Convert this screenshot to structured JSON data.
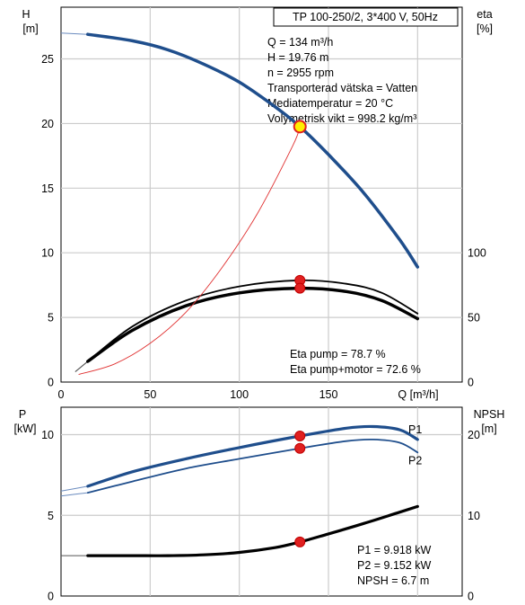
{
  "chart_data": [
    {
      "type": "line",
      "title": "TP 100-250/2, 3*400 V, 50Hz",
      "xlabel": "Q [m³/h]",
      "xlim": [
        0,
        225
      ],
      "xticks": [
        0,
        50,
        100,
        150
      ],
      "left_axis": {
        "label_top": "H",
        "label_unit": "[m]",
        "ylim": [
          0,
          29
        ],
        "ticks": [
          0,
          5,
          10,
          15,
          20,
          25
        ]
      },
      "right_axis": {
        "label_top": "eta",
        "label_unit": "[%]",
        "ylim": [
          0,
          290
        ],
        "ticks": [
          0,
          50,
          100
        ]
      },
      "grid": true,
      "info_lines": [
        "Q = 134 m³/h",
        "H = 19.76 m",
        "n = 2955 rpm",
        "Transporterad vätska = Vatten",
        "Mediatemperatur = 20 °C",
        "Volymetrisk vikt = 998.2 kg/m³"
      ],
      "eta_labels": [
        "Eta pump = 78.7 %",
        "Eta pump+motor = 72.6 %"
      ],
      "series": [
        {
          "id": "H",
          "axis": "left",
          "color": "#1f4e8c",
          "x_extension": [
            0,
            15
          ],
          "y_extension": [
            27.0,
            26.9
          ],
          "x": [
            15,
            40,
            60,
            80,
            100,
            120,
            134,
            150,
            170,
            190,
            200
          ],
          "y": [
            26.9,
            26.4,
            25.7,
            24.6,
            23.2,
            21.3,
            19.76,
            17.6,
            14.6,
            11.0,
            8.9
          ]
        },
        {
          "id": "eta-pump-upper",
          "axis": "right",
          "color": "#000000",
          "x_extension": [
            8,
            15
          ],
          "y_extension": [
            8,
            16
          ],
          "x": [
            15,
            40,
            70,
            100,
            134,
            160,
            180,
            200
          ],
          "y": [
            16,
            43,
            63,
            74,
            78.7,
            76,
            69,
            53
          ]
        },
        {
          "id": "eta-pump",
          "axis": "right",
          "color": "#000000",
          "x_extension": [
            8,
            15
          ],
          "y_extension": [
            8,
            16
          ],
          "x": [
            15,
            40,
            70,
            100,
            134,
            160,
            180,
            200
          ],
          "y": [
            16,
            40,
            59,
            69,
            72.6,
            70,
            63,
            49
          ]
        },
        {
          "id": "system-curve",
          "axis": "left",
          "color": "#e03030",
          "x": [
            10,
            30,
            50,
            70,
            90,
            110,
            130,
            134
          ],
          "y": [
            0.6,
            1.4,
            3.0,
            5.4,
            8.8,
            13.0,
            18.3,
            19.76
          ]
        }
      ],
      "operating_points": [
        {
          "x": 134,
          "y": 19.76,
          "axis": "left",
          "style": "yellow"
        },
        {
          "x": 134,
          "y": 78.7,
          "axis": "right",
          "style": "red"
        },
        {
          "x": 134,
          "y": 72.6,
          "axis": "right",
          "style": "red"
        }
      ]
    },
    {
      "type": "line",
      "xlim": [
        0,
        225
      ],
      "left_axis": {
        "label_top": "P",
        "label_unit": "[kW]",
        "ylim": [
          0,
          11.7
        ],
        "ticks": [
          0,
          5,
          10
        ]
      },
      "right_axis": {
        "label_top": "NPSH",
        "label_unit": "[m]",
        "ylim": [
          0,
          23.4
        ],
        "ticks": [
          0,
          10,
          20
        ]
      },
      "grid": true,
      "info_lines": [
        "P1 = 9.918 kW",
        "P2 = 9.152 kW",
        "NPSH = 6.7 m"
      ],
      "series": [
        {
          "id": "P1",
          "name": "P1",
          "axis": "left",
          "color": "#1f4e8c",
          "x_extension": [
            0,
            15
          ],
          "y_extension": [
            6.5,
            6.8
          ],
          "x": [
            15,
            40,
            70,
            100,
            134,
            160,
            175,
            190,
            200
          ],
          "y": [
            6.8,
            7.7,
            8.5,
            9.2,
            9.918,
            10.4,
            10.5,
            10.3,
            9.7
          ]
        },
        {
          "id": "P2",
          "name": "P2",
          "axis": "left",
          "color": "#1f4e8c",
          "x_extension": [
            0,
            15
          ],
          "y_extension": [
            6.2,
            6.4
          ],
          "x": [
            15,
            40,
            70,
            100,
            134,
            160,
            175,
            190,
            200
          ],
          "y": [
            6.4,
            7.1,
            7.9,
            8.5,
            9.152,
            9.6,
            9.7,
            9.5,
            8.9
          ]
        },
        {
          "id": "NPSH",
          "axis": "right",
          "color": "#000000",
          "x_extension": [
            0,
            15
          ],
          "y_extension": [
            5.0,
            5.0
          ],
          "x": [
            15,
            40,
            60,
            80,
            100,
            120,
            134,
            150,
            170,
            190,
            200
          ],
          "y": [
            5.0,
            5.0,
            5.0,
            5.1,
            5.4,
            6.0,
            6.7,
            7.7,
            9.0,
            10.4,
            11.1
          ]
        }
      ],
      "operating_points": [
        {
          "x": 134,
          "y": 9.918,
          "axis": "left",
          "style": "red"
        },
        {
          "x": 134,
          "y": 9.152,
          "axis": "left",
          "style": "red"
        },
        {
          "x": 134,
          "y": 6.7,
          "axis": "right",
          "style": "red"
        }
      ]
    }
  ]
}
